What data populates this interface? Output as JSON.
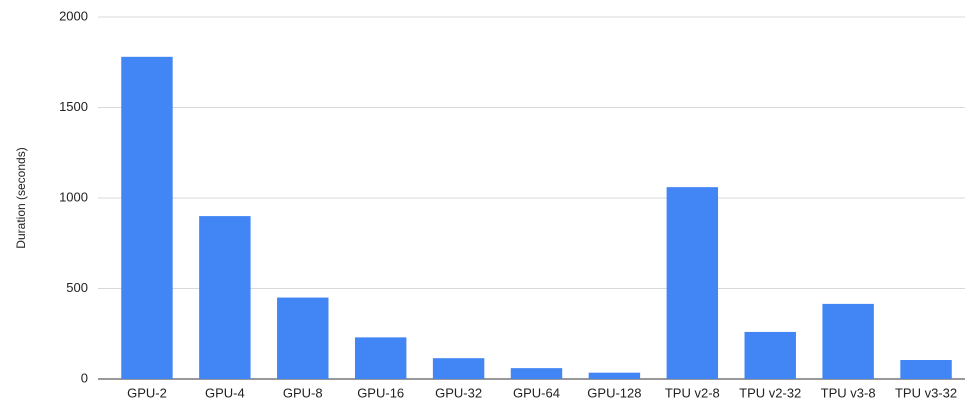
{
  "chart_data": {
    "type": "bar",
    "y_label": "Duration (seconds)",
    "categories": [
      "GPU-2",
      "GPU-4",
      "GPU-8",
      "GPU-16",
      "GPU-32",
      "GPU-64",
      "GPU-128",
      "TPU v2-8",
      "TPU v2-32",
      "TPU v3-8",
      "TPU v3-32"
    ],
    "values": [
      1780,
      900,
      450,
      230,
      115,
      60,
      35,
      1060,
      260,
      415,
      105
    ],
    "color": "#4285f4",
    "ylim": [
      0,
      2000
    ],
    "yticks": [
      0,
      500,
      1000,
      1500,
      2000
    ],
    "grid": true
  }
}
